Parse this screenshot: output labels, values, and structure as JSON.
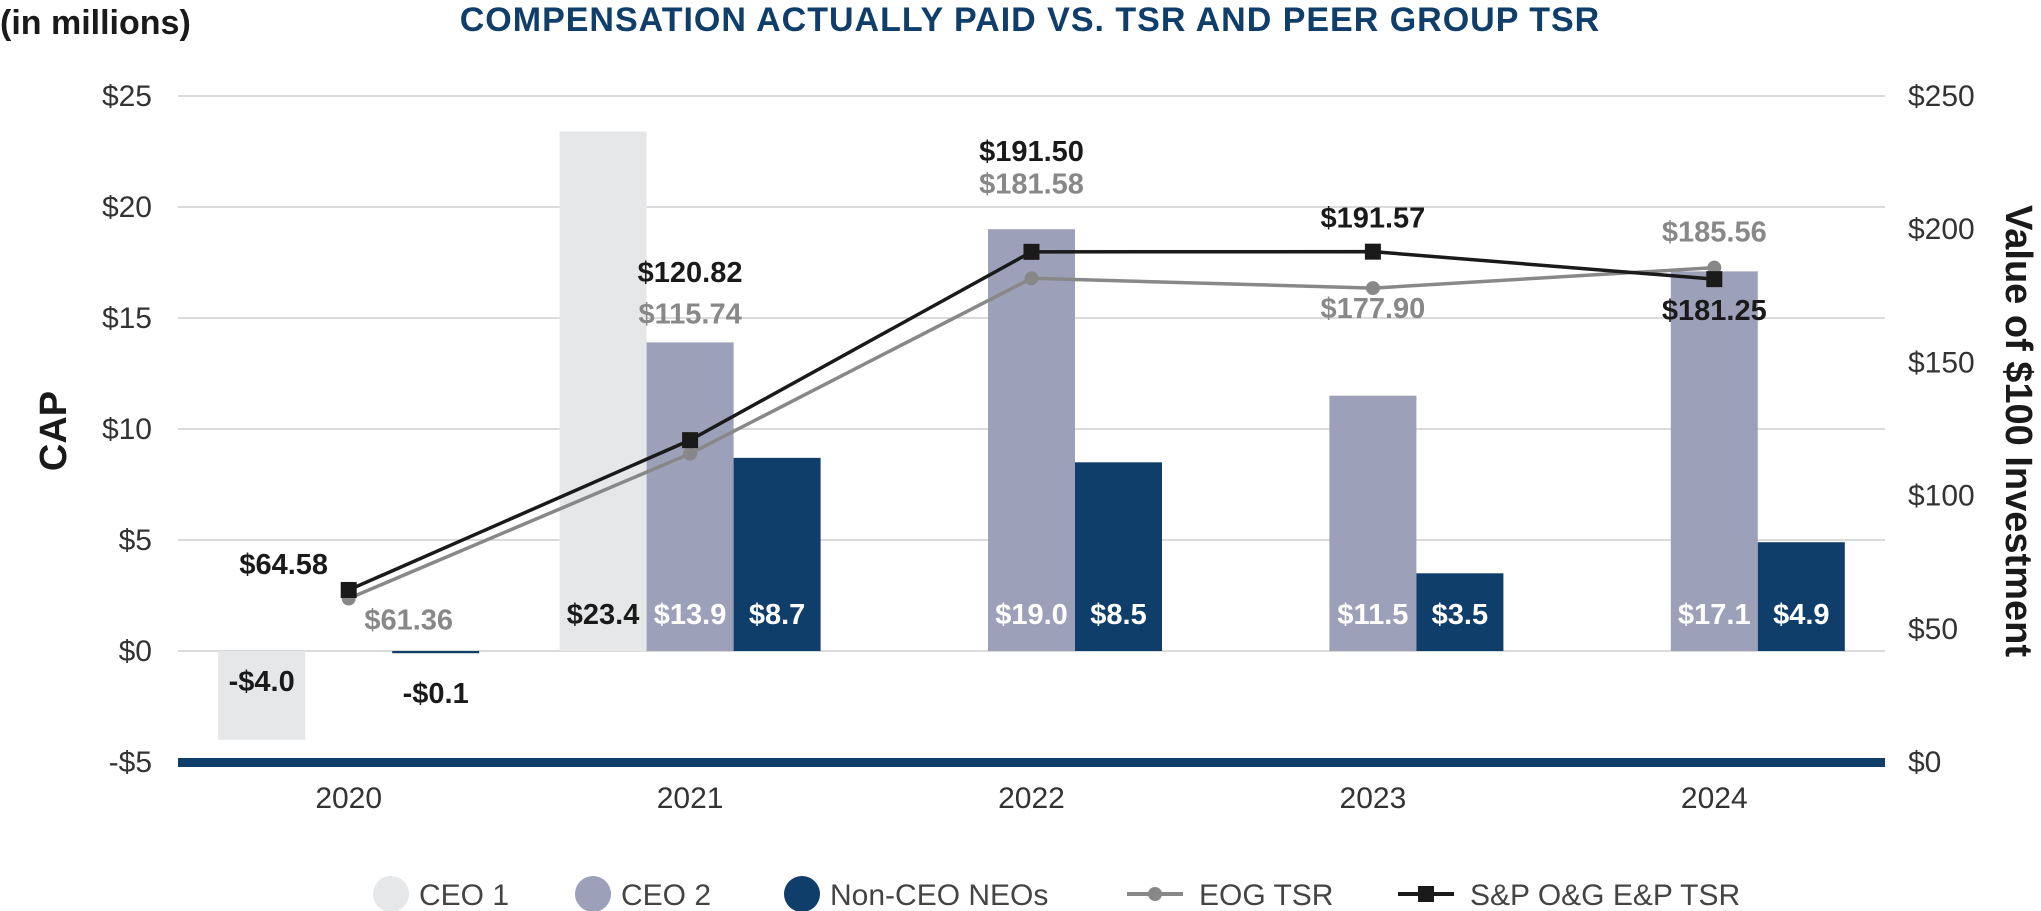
{
  "units_label": "(in millions)",
  "chart_data": {
    "type": "bar",
    "title": "COMPENSATION ACTUALLY PAID VS. TSR AND PEER GROUP TSR",
    "ylabel": "CAP",
    "y2label": "Value of $100 Investment",
    "categories": [
      "2020",
      "2021",
      "2022",
      "2023",
      "2024"
    ],
    "ylim": [
      -5,
      25
    ],
    "yticks": [
      -5,
      0,
      5,
      10,
      15,
      20,
      25
    ],
    "ytick_labels": [
      "-$5",
      "$0",
      "$5",
      "$10",
      "$15",
      "$20",
      "$25"
    ],
    "y2lim": [
      0,
      250
    ],
    "y2ticks": [
      0,
      50,
      100,
      150,
      200,
      250
    ],
    "y2tick_labels": [
      "$0",
      "$50",
      "$100",
      "$150",
      "$200",
      "$250"
    ],
    "grid": true,
    "legend_position": "bottom",
    "series": [
      {
        "name": "CEO 1",
        "kind": "bar",
        "color": "#e6e7e9",
        "label_color": "#1a1a1a",
        "values": [
          -4.0,
          23.4,
          null,
          null,
          null
        ],
        "labels": [
          "-$4.0",
          "$23.4",
          null,
          null,
          null
        ]
      },
      {
        "name": "CEO 2",
        "kind": "bar",
        "color": "#9ca1b9",
        "label_color": "#ffffff",
        "values": [
          null,
          13.9,
          19.0,
          11.5,
          17.1
        ],
        "labels": [
          null,
          "$13.9",
          "$19.0",
          "$11.5",
          "$17.1"
        ]
      },
      {
        "name": "Non-CEO NEOs",
        "kind": "bar",
        "color": "#0e3e69",
        "label_color": "#ffffff",
        "values": [
          -0.1,
          8.7,
          8.5,
          3.5,
          4.9
        ],
        "labels": [
          "-$0.1",
          "$8.7",
          "$8.5",
          "$3.5",
          "$4.9"
        ]
      },
      {
        "name": "EOG TSR",
        "kind": "line",
        "axis": "y2",
        "color": "#888888",
        "marker": "circle",
        "values": [
          61.36,
          115.74,
          181.58,
          177.9,
          185.56
        ],
        "labels": [
          "$61.36",
          "$115.74",
          "$181.58",
          "$177.90",
          "$185.56"
        ]
      },
      {
        "name": "S&P O&G E&P TSR",
        "kind": "line",
        "axis": "y2",
        "color": "#1a1a1a",
        "marker": "square",
        "values": [
          64.58,
          120.82,
          191.5,
          191.57,
          181.25
        ],
        "labels": [
          "$64.58",
          "$120.82",
          "$191.50",
          "$191.57",
          "$181.25"
        ]
      }
    ]
  }
}
